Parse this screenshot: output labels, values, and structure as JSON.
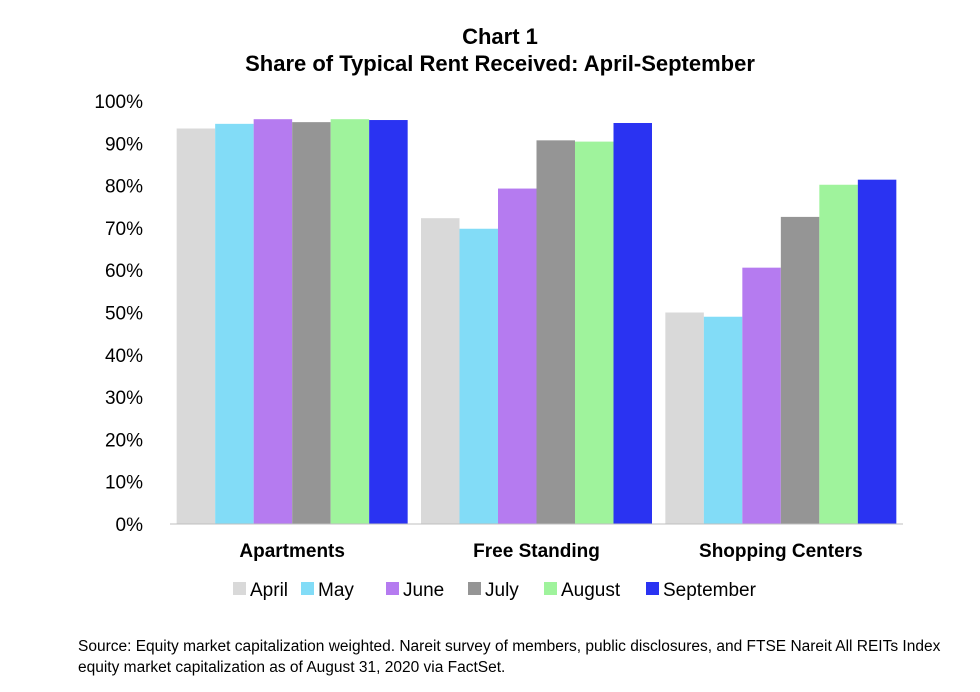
{
  "chart_data": {
    "type": "bar",
    "title": "Chart 1",
    "subtitle": "Share of Typical Rent Received: April-September",
    "categories": [
      "Apartments",
      "Free Standing",
      "Shopping Centers"
    ],
    "series": [
      {
        "name": "April",
        "color": "#d9d9d9",
        "values": [
          93.5,
          72.3,
          50.0
        ]
      },
      {
        "name": "May",
        "color": "#82dcf7",
        "values": [
          94.6,
          69.8,
          49.0
        ]
      },
      {
        "name": "June",
        "color": "#b57bf0",
        "values": [
          95.7,
          79.3,
          60.6
        ]
      },
      {
        "name": "July",
        "color": "#959595",
        "values": [
          95.0,
          90.7,
          72.6
        ]
      },
      {
        "name": "August",
        "color": "#9ff39c",
        "values": [
          95.7,
          90.4,
          80.2
        ]
      },
      {
        "name": "September",
        "color": "#2a33f2",
        "values": [
          95.5,
          94.8,
          81.4
        ]
      }
    ],
    "ylim": [
      0,
      100
    ],
    "yticks": [
      "0%",
      "10%",
      "20%",
      "30%",
      "40%",
      "50%",
      "60%",
      "70%",
      "80%",
      "90%",
      "100%"
    ],
    "grid": false,
    "legend_position": "bottom"
  },
  "source_text": "Source: Equity market capitalization weighted. Nareit survey of members, public disclosures, and FTSE Nareit All REITs Index equity market capitalization as of August 31, 2020 via FactSet."
}
